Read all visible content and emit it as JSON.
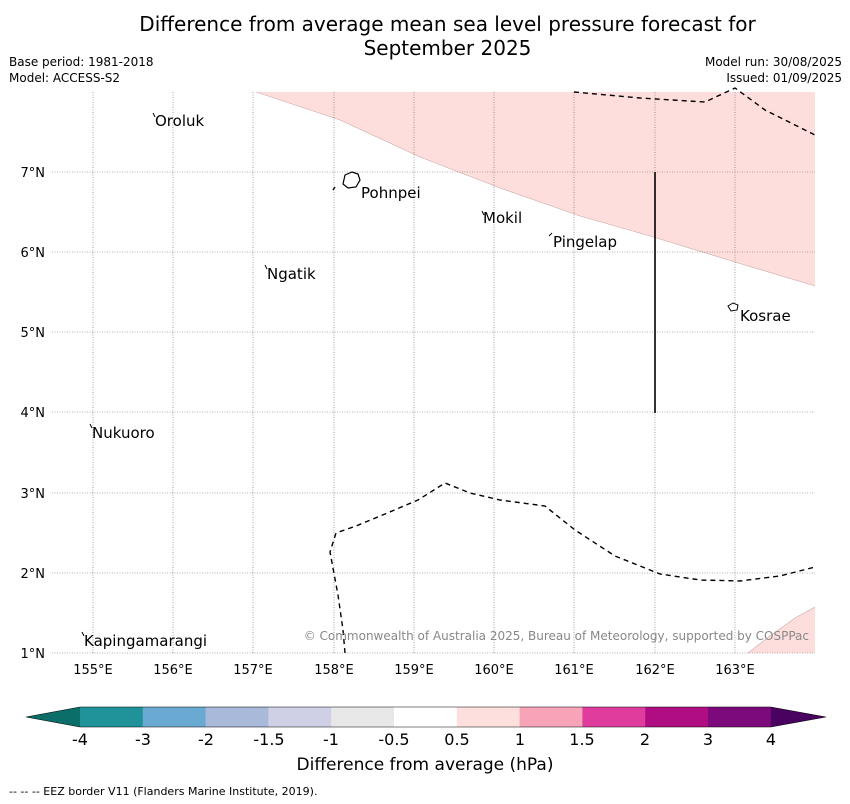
{
  "title": {
    "line1": "Difference from average mean sea level pressure forecast for",
    "line2": "September 2025"
  },
  "meta": {
    "base_period": "Base period: 1981-2018",
    "model": "Model: ACCESS-S2",
    "model_run": "Model run: 30/08/2025",
    "issued": "Issued: 01/09/2025"
  },
  "map": {
    "lon_labels": [
      "155°E",
      "156°E",
      "157°E",
      "158°E",
      "159°E",
      "160°E",
      "161°E",
      "162°E",
      "163°E"
    ],
    "lat_labels": [
      "7°N",
      "6°N",
      "5°N",
      "4°N",
      "3°N",
      "2°N",
      "1°N"
    ],
    "places": [
      {
        "id": "oroluk",
        "name": "Oroluk"
      },
      {
        "id": "pohnpei",
        "name": "Pohnpei"
      },
      {
        "id": "mokil",
        "name": "Mokil"
      },
      {
        "id": "pingelap",
        "name": "Pingelap"
      },
      {
        "id": "ngatik",
        "name": "Ngatik"
      },
      {
        "id": "kosrae",
        "name": "Kosrae"
      },
      {
        "id": "nukuoro",
        "name": "Nukuoro"
      },
      {
        "id": "kapingamarangi",
        "name": "Kapingamarangi"
      }
    ],
    "copyright": "© Commonwealth of Australia 2025, Bureau of Meteorology, supported by COSPPac",
    "shading_color": "#fddedc"
  },
  "colorbar": {
    "title": "Difference from average (hPa)",
    "ticks": [
      "-4",
      "-3",
      "-2",
      "-1.5",
      "-1",
      "-0.5",
      "0.5",
      "1",
      "1.5",
      "2",
      "3",
      "4"
    ],
    "colors": [
      "#0b6e68",
      "#1f9399",
      "#6aa9d2",
      "#a8b9da",
      "#cfd0e6",
      "#e8e8e8",
      "#ffffff",
      "#fde0de",
      "#f7a3b8",
      "#df3c9e",
      "#b00d83",
      "#7c0a7c",
      "#4a0260"
    ]
  },
  "footer": "--  --  -- EEZ border V11 (Flanders Marine Institute, 2019)."
}
